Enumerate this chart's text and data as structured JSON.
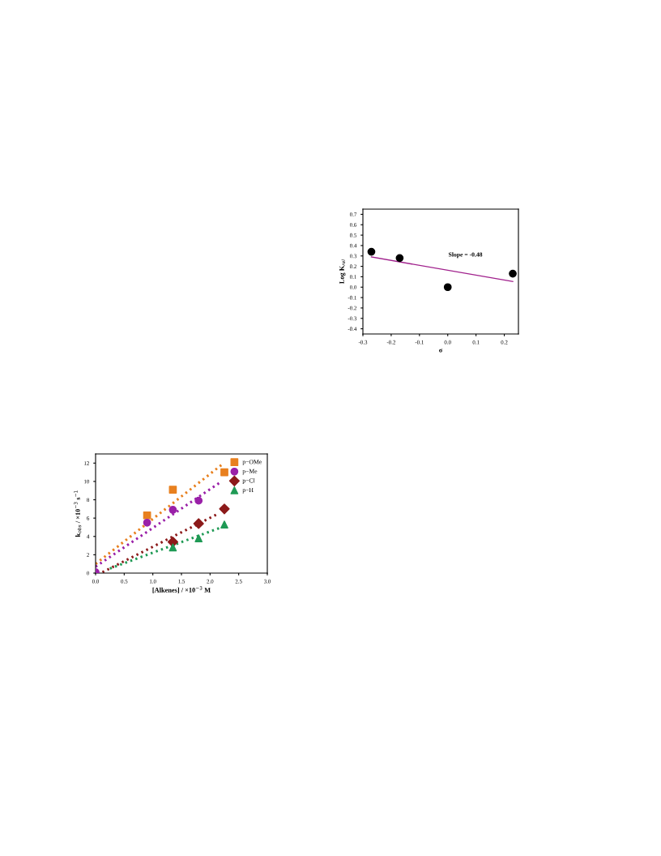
{
  "chart_data": [
    {
      "type": "scatter",
      "xlabel": "[Alkenes] / ×10$^{−3}$ M",
      "ylabel": "k$_{obs}$ / ×10$^{−3}$ s$^{−1}$",
      "xlim": [
        0,
        3
      ],
      "ylim": [
        0,
        13
      ],
      "xticks": [
        {
          "value": 0,
          "label": "0.0"
        },
        0.5,
        {
          "value": 1,
          "label": "1.0"
        },
        1.5,
        {
          "value": 2,
          "label": "2.0"
        },
        2.5,
        {
          "value": 3,
          "label": "3.0"
        }
      ],
      "yticks": [
        0,
        2,
        4,
        6,
        8,
        10,
        12
      ],
      "legend": "top right",
      "grid": false,
      "series": [
        {
          "name": "p−OMe",
          "color": "#e8801f",
          "marker": "square",
          "x": [
            0.9,
            1.35,
            2.25
          ],
          "values": [
            6.3,
            9.1,
            11.0
          ]
        },
        {
          "name": "p−Me",
          "color": "#9a20a8",
          "marker": "circle",
          "x": [
            0,
            0.9,
            1.35,
            1.8
          ],
          "values": [
            0.1,
            5.5,
            6.9,
            7.9
          ]
        },
        {
          "name": "p−Cl",
          "color": "#8c1a1a",
          "marker": "diamond",
          "x": [
            1.35,
            1.8,
            2.25
          ],
          "values": [
            3.4,
            5.4,
            7.0
          ]
        },
        {
          "name": "p−H",
          "color": "#1f9a55",
          "marker": "triangle",
          "x": [
            1.35,
            1.8,
            2.25
          ],
          "values": [
            2.8,
            3.8,
            5.3
          ]
        },
        {
          "type": "line",
          "line_style": "dotted",
          "color": "#e8801f",
          "x": [
            0,
            2.2
          ],
          "values": [
            1.0,
            11.8
          ]
        },
        {
          "type": "line",
          "line_style": "dotted",
          "color": "#9a20a8",
          "x": [
            0,
            2.2
          ],
          "values": [
            0.7,
            10.0
          ]
        },
        {
          "type": "line",
          "line_style": "dotted",
          "color": "#8c1a1a",
          "x": [
            0.12,
            2.15
          ],
          "values": [
            0.1,
            6.5
          ]
        },
        {
          "type": "line",
          "line_style": "dotted",
          "color": "#1f9a55",
          "x": [
            0.25,
            2.2
          ],
          "values": [
            0.5,
            5.0
          ]
        }
      ]
    },
    {
      "type": "scatter",
      "xlabel": "σ",
      "ylabel": "Log K$_{rel}$",
      "xlim": [
        -0.3,
        0.25
      ],
      "ylim": [
        -0.45,
        0.75
      ],
      "xticks": [
        -0.3,
        -0.2,
        -0.1,
        {
          "value": 0,
          "label": "0.0"
        },
        0.1,
        0.2
      ],
      "yticks": [
        -0.4,
        -0.3,
        -0.2,
        -0.1,
        {
          "value": 0,
          "label": "0.0"
        },
        0.1,
        0.2,
        0.3,
        0.4,
        0.5,
        0.6,
        0.7
      ],
      "grid": false,
      "annotations": [
        "Slope = -0.48"
      ],
      "series": [
        {
          "color": "#000000",
          "marker": "circle",
          "x": [
            -0.27,
            -0.17,
            0.0,
            0.23
          ],
          "values": [
            0.34,
            0.28,
            0.0,
            0.13
          ]
        },
        {
          "type": "line",
          "line_style": "solid",
          "color": "#a0208c",
          "x": [
            -0.27,
            0.23
          ],
          "values": [
            0.29,
            0.055
          ]
        }
      ]
    }
  ]
}
